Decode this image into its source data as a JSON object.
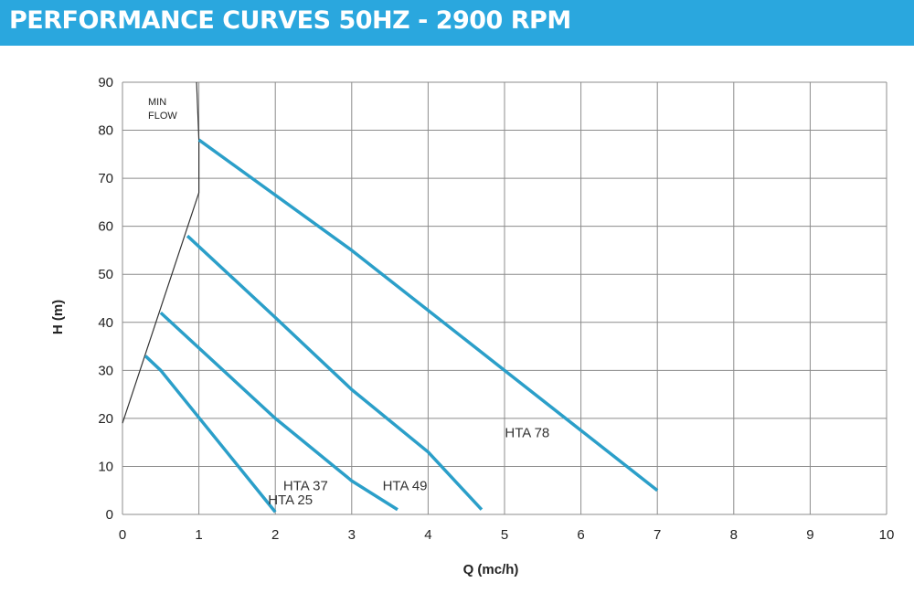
{
  "header": {
    "title": "PERFORMANCE CURVES 50HZ - 2900 RPM"
  },
  "colors": {
    "header_bg": "#2aa7de",
    "series": "#2b9fc9",
    "grid": "#8c8c8c",
    "min_flow_line": "#333333"
  },
  "chart_data": {
    "type": "line",
    "title": "",
    "xlabel": "Q (mc/h)",
    "ylabel": "H (m)",
    "xlim": [
      0,
      10
    ],
    "ylim": [
      0,
      90
    ],
    "x_ticks": [
      0,
      1,
      2,
      3,
      4,
      5,
      6,
      7,
      8,
      9,
      10
    ],
    "y_ticks": [
      0,
      10,
      20,
      30,
      40,
      50,
      60,
      70,
      80,
      90
    ],
    "grid": true,
    "series": [
      {
        "name": "HTA 25",
        "x": [
          0.3,
          0.5,
          2.0
        ],
        "y": [
          33,
          30,
          0.5
        ]
      },
      {
        "name": "HTA 37",
        "x": [
          0.5,
          2.0,
          3.0,
          3.6
        ],
        "y": [
          42,
          20,
          7,
          1
        ]
      },
      {
        "name": "HTA 49",
        "x": [
          0.85,
          2.0,
          3.0,
          4.0,
          4.7
        ],
        "y": [
          58,
          41,
          26,
          13,
          1
        ]
      },
      {
        "name": "HTA 78",
        "x": [
          1.0,
          3.0,
          5.0,
          7.0
        ],
        "y": [
          78,
          55,
          30,
          5
        ]
      }
    ],
    "min_flow": {
      "label_lines": [
        "MIN",
        "FLOW"
      ],
      "x": [
        0.0,
        1.0,
        1.0,
        0.97
      ],
      "y": [
        19,
        67,
        78,
        90
      ]
    }
  }
}
